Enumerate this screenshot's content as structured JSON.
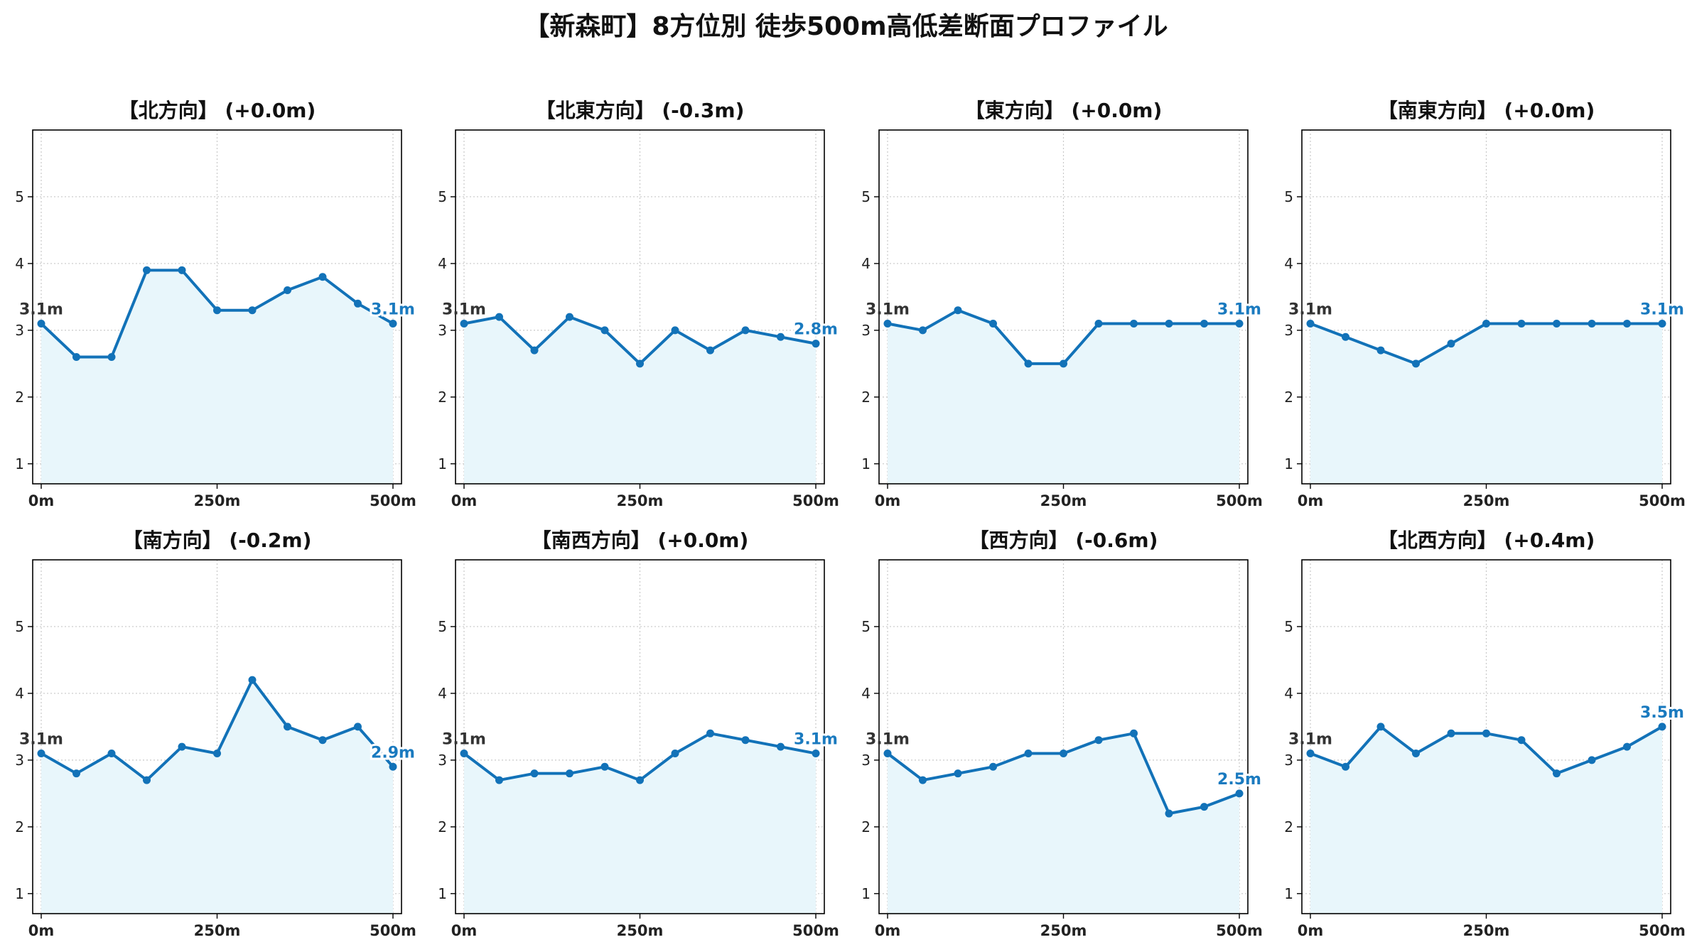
{
  "title": "【新森町】8方位別 徒歩500m高低差断面プロファイル",
  "style": {
    "line_color": "#1272b8",
    "fill_color": "#e8f6fb",
    "end_label_color": "#1a7abf",
    "grid": true
  },
  "chart_data": [
    {
      "type": "line",
      "title": "【北方向】 (+0.0m)",
      "x": [
        0,
        50,
        100,
        150,
        200,
        250,
        300,
        350,
        400,
        450,
        500
      ],
      "values": [
        3.1,
        2.6,
        2.6,
        3.9,
        3.9,
        3.3,
        3.3,
        3.6,
        3.8,
        3.4,
        3.1
      ],
      "xticks": [
        "0m",
        "250m",
        "500m"
      ],
      "yticks": [
        "1",
        "2",
        "3",
        "4",
        "5"
      ],
      "ylim": [
        0.7,
        6.0
      ],
      "start_label": "3.1m",
      "end_label": "3.1m"
    },
    {
      "type": "line",
      "title": "【北東方向】 (-0.3m)",
      "x": [
        0,
        50,
        100,
        150,
        200,
        250,
        300,
        350,
        400,
        450,
        500
      ],
      "values": [
        3.1,
        3.2,
        2.7,
        3.2,
        3.0,
        2.5,
        3.0,
        2.7,
        3.0,
        2.9,
        2.8
      ],
      "xticks": [
        "0m",
        "250m",
        "500m"
      ],
      "yticks": [
        "1",
        "2",
        "3",
        "4",
        "5"
      ],
      "ylim": [
        0.7,
        6.0
      ],
      "start_label": "3.1m",
      "end_label": "2.8m"
    },
    {
      "type": "line",
      "title": "【東方向】 (+0.0m)",
      "x": [
        0,
        50,
        100,
        150,
        200,
        250,
        300,
        350,
        400,
        450,
        500
      ],
      "values": [
        3.1,
        3.0,
        3.3,
        3.1,
        2.5,
        2.5,
        3.1,
        3.1,
        3.1,
        3.1,
        3.1
      ],
      "xticks": [
        "0m",
        "250m",
        "500m"
      ],
      "yticks": [
        "1",
        "2",
        "3",
        "4",
        "5"
      ],
      "ylim": [
        0.7,
        6.0
      ],
      "start_label": "3.1m",
      "end_label": "3.1m"
    },
    {
      "type": "line",
      "title": "【南東方向】 (+0.0m)",
      "x": [
        0,
        50,
        100,
        150,
        200,
        250,
        300,
        350,
        400,
        450,
        500
      ],
      "values": [
        3.1,
        2.9,
        2.7,
        2.5,
        2.8,
        3.1,
        3.1,
        3.1,
        3.1,
        3.1,
        3.1
      ],
      "xticks": [
        "0m",
        "250m",
        "500m"
      ],
      "yticks": [
        "1",
        "2",
        "3",
        "4",
        "5"
      ],
      "ylim": [
        0.7,
        6.0
      ],
      "start_label": "3.1m",
      "end_label": "3.1m"
    },
    {
      "type": "line",
      "title": "【南方向】 (-0.2m)",
      "x": [
        0,
        50,
        100,
        150,
        200,
        250,
        300,
        350,
        400,
        450,
        500
      ],
      "values": [
        3.1,
        2.8,
        3.1,
        2.7,
        3.2,
        3.1,
        4.2,
        3.5,
        3.3,
        3.5,
        2.9
      ],
      "xticks": [
        "0m",
        "250m",
        "500m"
      ],
      "yticks": [
        "1",
        "2",
        "3",
        "4",
        "5"
      ],
      "ylim": [
        0.7,
        6.0
      ],
      "start_label": "3.1m",
      "end_label": "2.9m"
    },
    {
      "type": "line",
      "title": "【南西方向】 (+0.0m)",
      "x": [
        0,
        50,
        100,
        150,
        200,
        250,
        300,
        350,
        400,
        450,
        500
      ],
      "values": [
        3.1,
        2.7,
        2.8,
        2.8,
        2.9,
        2.7,
        3.1,
        3.4,
        3.3,
        3.2,
        3.1
      ],
      "xticks": [
        "0m",
        "250m",
        "500m"
      ],
      "yticks": [
        "1",
        "2",
        "3",
        "4",
        "5"
      ],
      "ylim": [
        0.7,
        6.0
      ],
      "start_label": "3.1m",
      "end_label": "3.1m"
    },
    {
      "type": "line",
      "title": "【西方向】 (-0.6m)",
      "x": [
        0,
        50,
        100,
        150,
        200,
        250,
        300,
        350,
        400,
        450,
        500
      ],
      "values": [
        3.1,
        2.7,
        2.8,
        2.9,
        3.1,
        3.1,
        3.3,
        3.4,
        2.2,
        2.3,
        2.5
      ],
      "xticks": [
        "0m",
        "250m",
        "500m"
      ],
      "yticks": [
        "1",
        "2",
        "3",
        "4",
        "5"
      ],
      "ylim": [
        0.7,
        6.0
      ],
      "start_label": "3.1m",
      "end_label": "2.5m"
    },
    {
      "type": "line",
      "title": "【北西方向】 (+0.4m)",
      "x": [
        0,
        50,
        100,
        150,
        200,
        250,
        300,
        350,
        400,
        450,
        500
      ],
      "values": [
        3.1,
        2.9,
        3.5,
        3.1,
        3.4,
        3.4,
        3.3,
        2.8,
        3.0,
        3.2,
        3.5
      ],
      "xticks": [
        "0m",
        "250m",
        "500m"
      ],
      "yticks": [
        "1",
        "2",
        "3",
        "4",
        "5"
      ],
      "ylim": [
        0.7,
        6.0
      ],
      "start_label": "3.1m",
      "end_label": "3.5m"
    }
  ]
}
